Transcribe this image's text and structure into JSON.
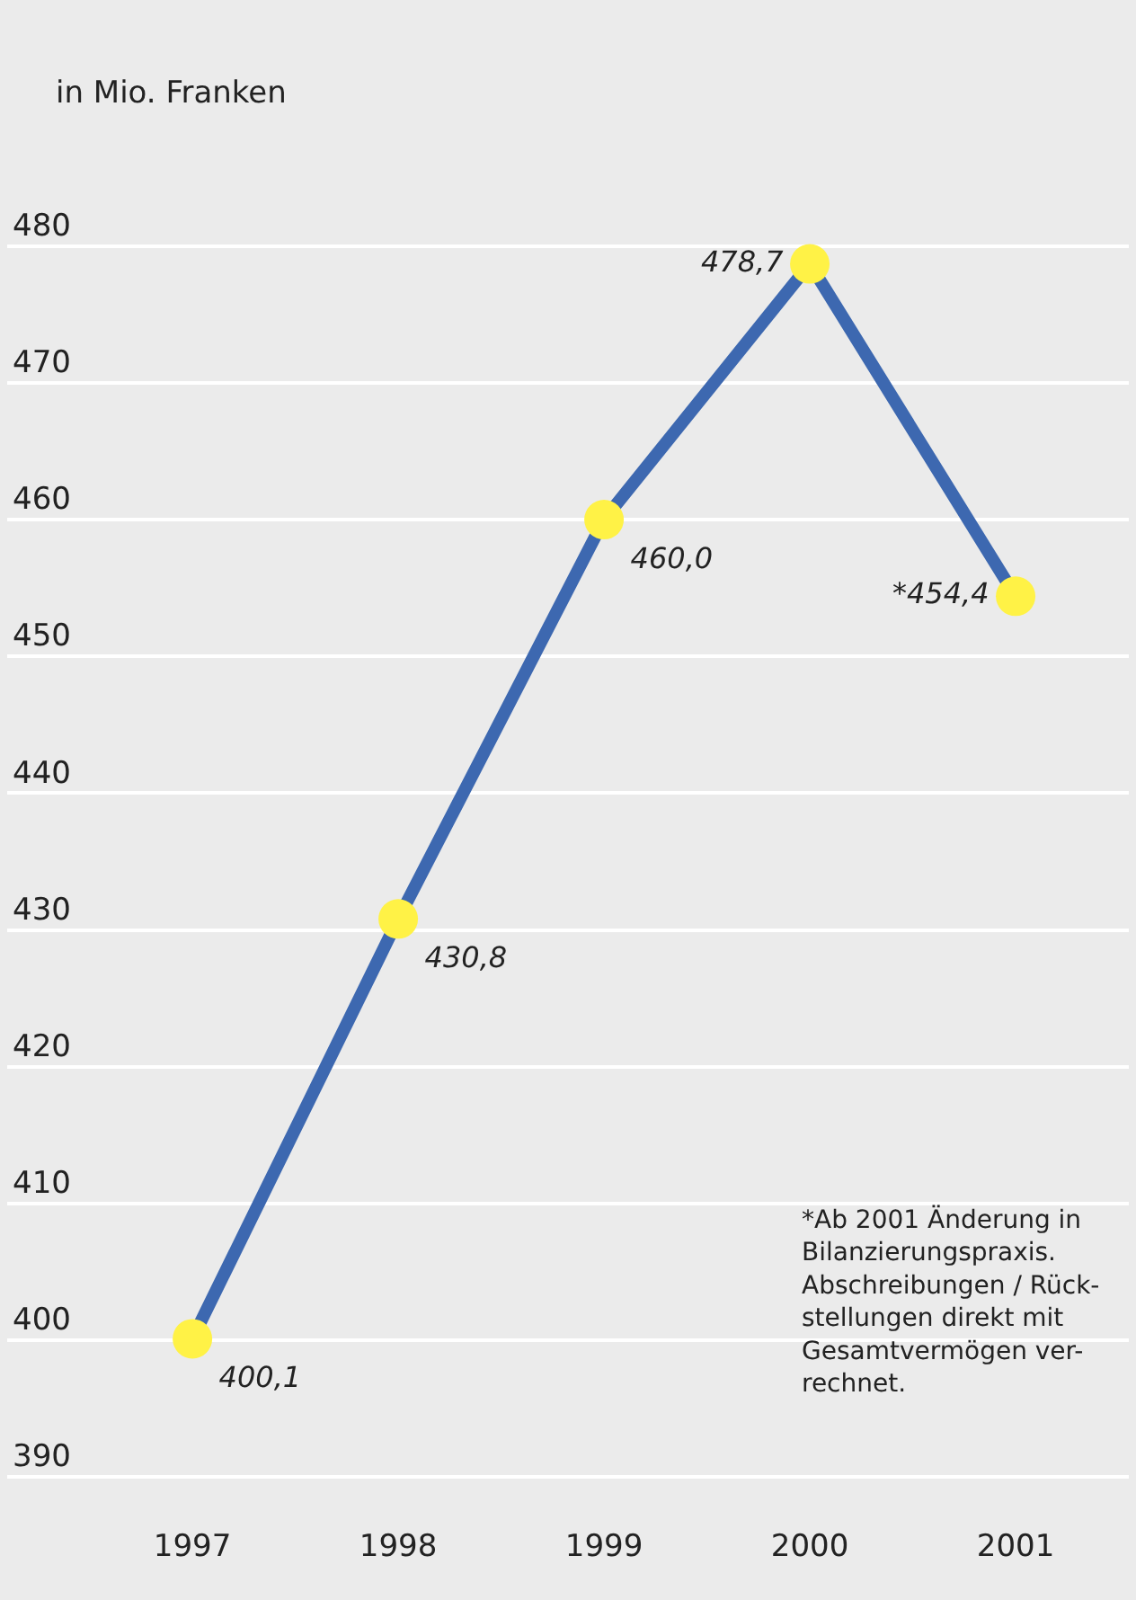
{
  "chart_data": {
    "type": "line",
    "ylabel": "in Mio. Franken",
    "categories": [
      "1997",
      "1998",
      "1999",
      "2000",
      "2001"
    ],
    "series": [
      {
        "color": "#3d68b0",
        "values": [
          400.1,
          430.8,
          460.0,
          478.7,
          454.4
        ],
        "value_labels": [
          "400,1",
          "430,8",
          "460,0",
          "478,7",
          "*454,4"
        ]
      }
    ],
    "ylim": [
      381,
      498
    ],
    "yticks": [
      390,
      400,
      410,
      420,
      430,
      440,
      450,
      460,
      470,
      480
    ],
    "grid": "y",
    "marker": "circle",
    "line_style": "solid",
    "annotations": [
      "*Ab 2001 Änderung in\nBilanzierungspraxis.\nAbschreibungen / Rück-\nstellungen direkt mit\nGesamtvermögen ver-\nrechnet."
    ]
  }
}
